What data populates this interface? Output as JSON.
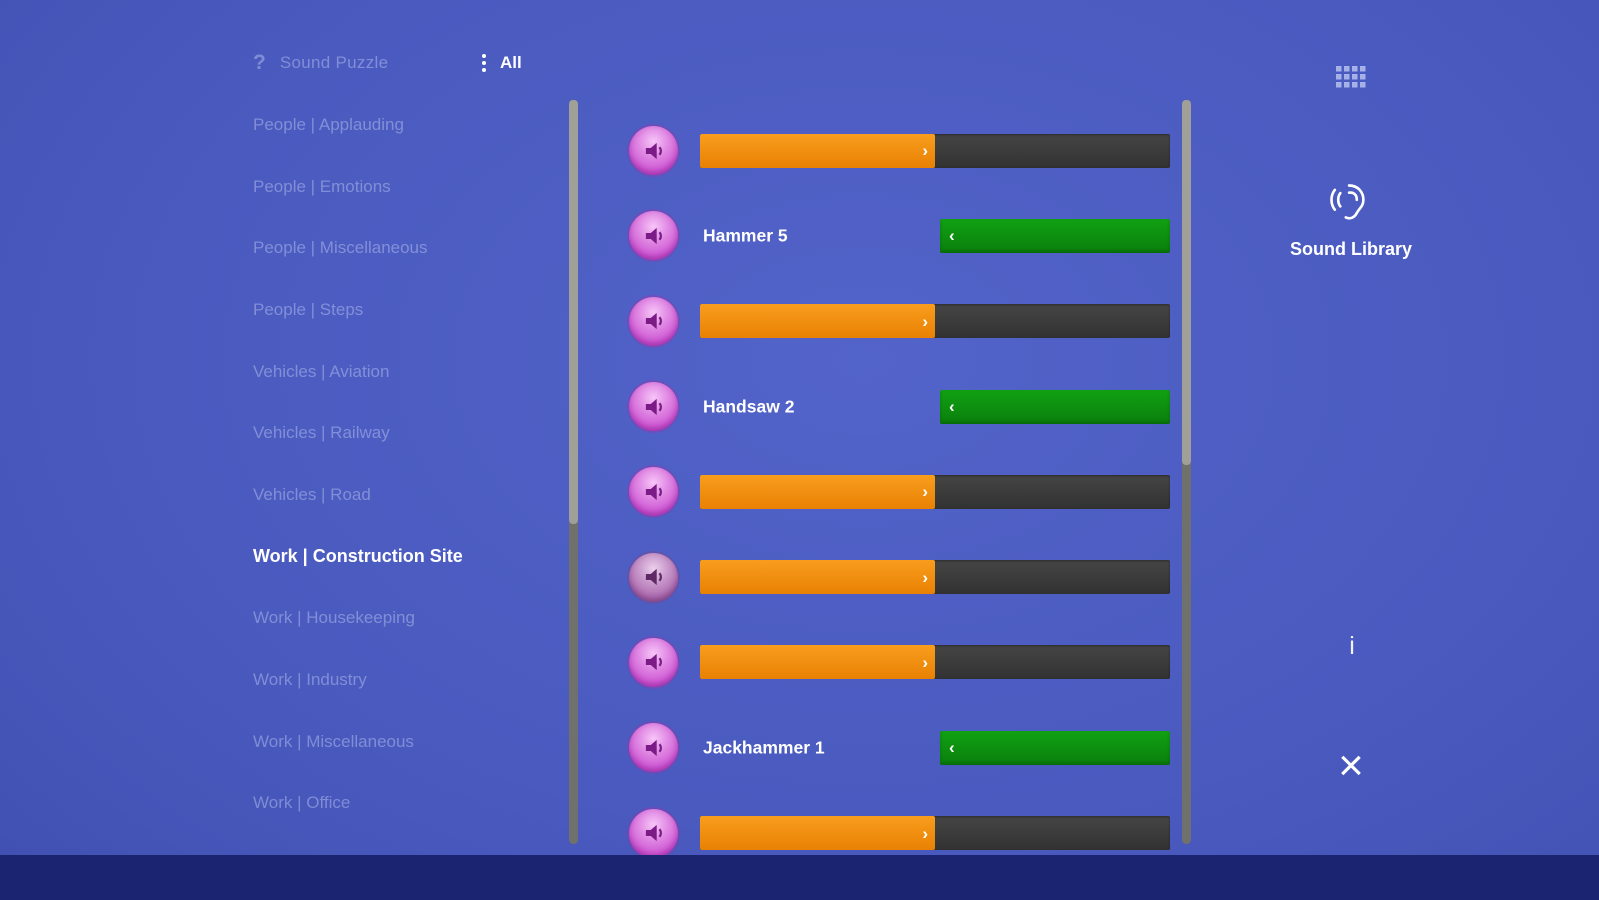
{
  "header": {
    "puzzle": {
      "icon": "?",
      "label": "Sound Puzzle"
    },
    "filter": {
      "label": "All"
    }
  },
  "sidebar": {
    "items": [
      {
        "label": "People | Applauding",
        "selected": false
      },
      {
        "label": "People | Emotions",
        "selected": false
      },
      {
        "label": "People | Miscellaneous",
        "selected": false
      },
      {
        "label": "People | Steps",
        "selected": false
      },
      {
        "label": "Vehicles | Aviation",
        "selected": false
      },
      {
        "label": "Vehicles | Railway",
        "selected": false
      },
      {
        "label": "Vehicles | Road",
        "selected": false
      },
      {
        "label": "Work | Construction Site",
        "selected": true
      },
      {
        "label": "Work | Housekeeping",
        "selected": false
      },
      {
        "label": "Work | Industry",
        "selected": false
      },
      {
        "label": "Work | Miscellaneous",
        "selected": false
      },
      {
        "label": "Work | Office",
        "selected": false
      }
    ]
  },
  "sound_list": {
    "chevron_right": "›",
    "chevron_left": "‹",
    "rows": [
      {
        "state": "unsolved",
        "progress_pct": 50
      },
      {
        "state": "solved",
        "label": "Hammer 5"
      },
      {
        "state": "unsolved",
        "progress_pct": 50
      },
      {
        "state": "solved",
        "label": "Handsaw 2"
      },
      {
        "state": "unsolved",
        "progress_pct": 50
      },
      {
        "state": "unsolved",
        "progress_pct": 50
      },
      {
        "state": "unsolved",
        "progress_pct": 50
      },
      {
        "state": "solved",
        "label": "Jackhammer 1"
      },
      {
        "state": "unsolved",
        "progress_pct": 50
      }
    ]
  },
  "right_panel": {
    "title": "Sound Library",
    "info_icon": "i",
    "close_icon": "×"
  },
  "colors": {
    "background_blue": "#4A5ABE",
    "orange": "#EF8B13",
    "green": "#0C930C",
    "track_dark": "#3B3B3B",
    "speaker_pink": "#D55BDA",
    "bottom_bar": "#1A2470"
  }
}
